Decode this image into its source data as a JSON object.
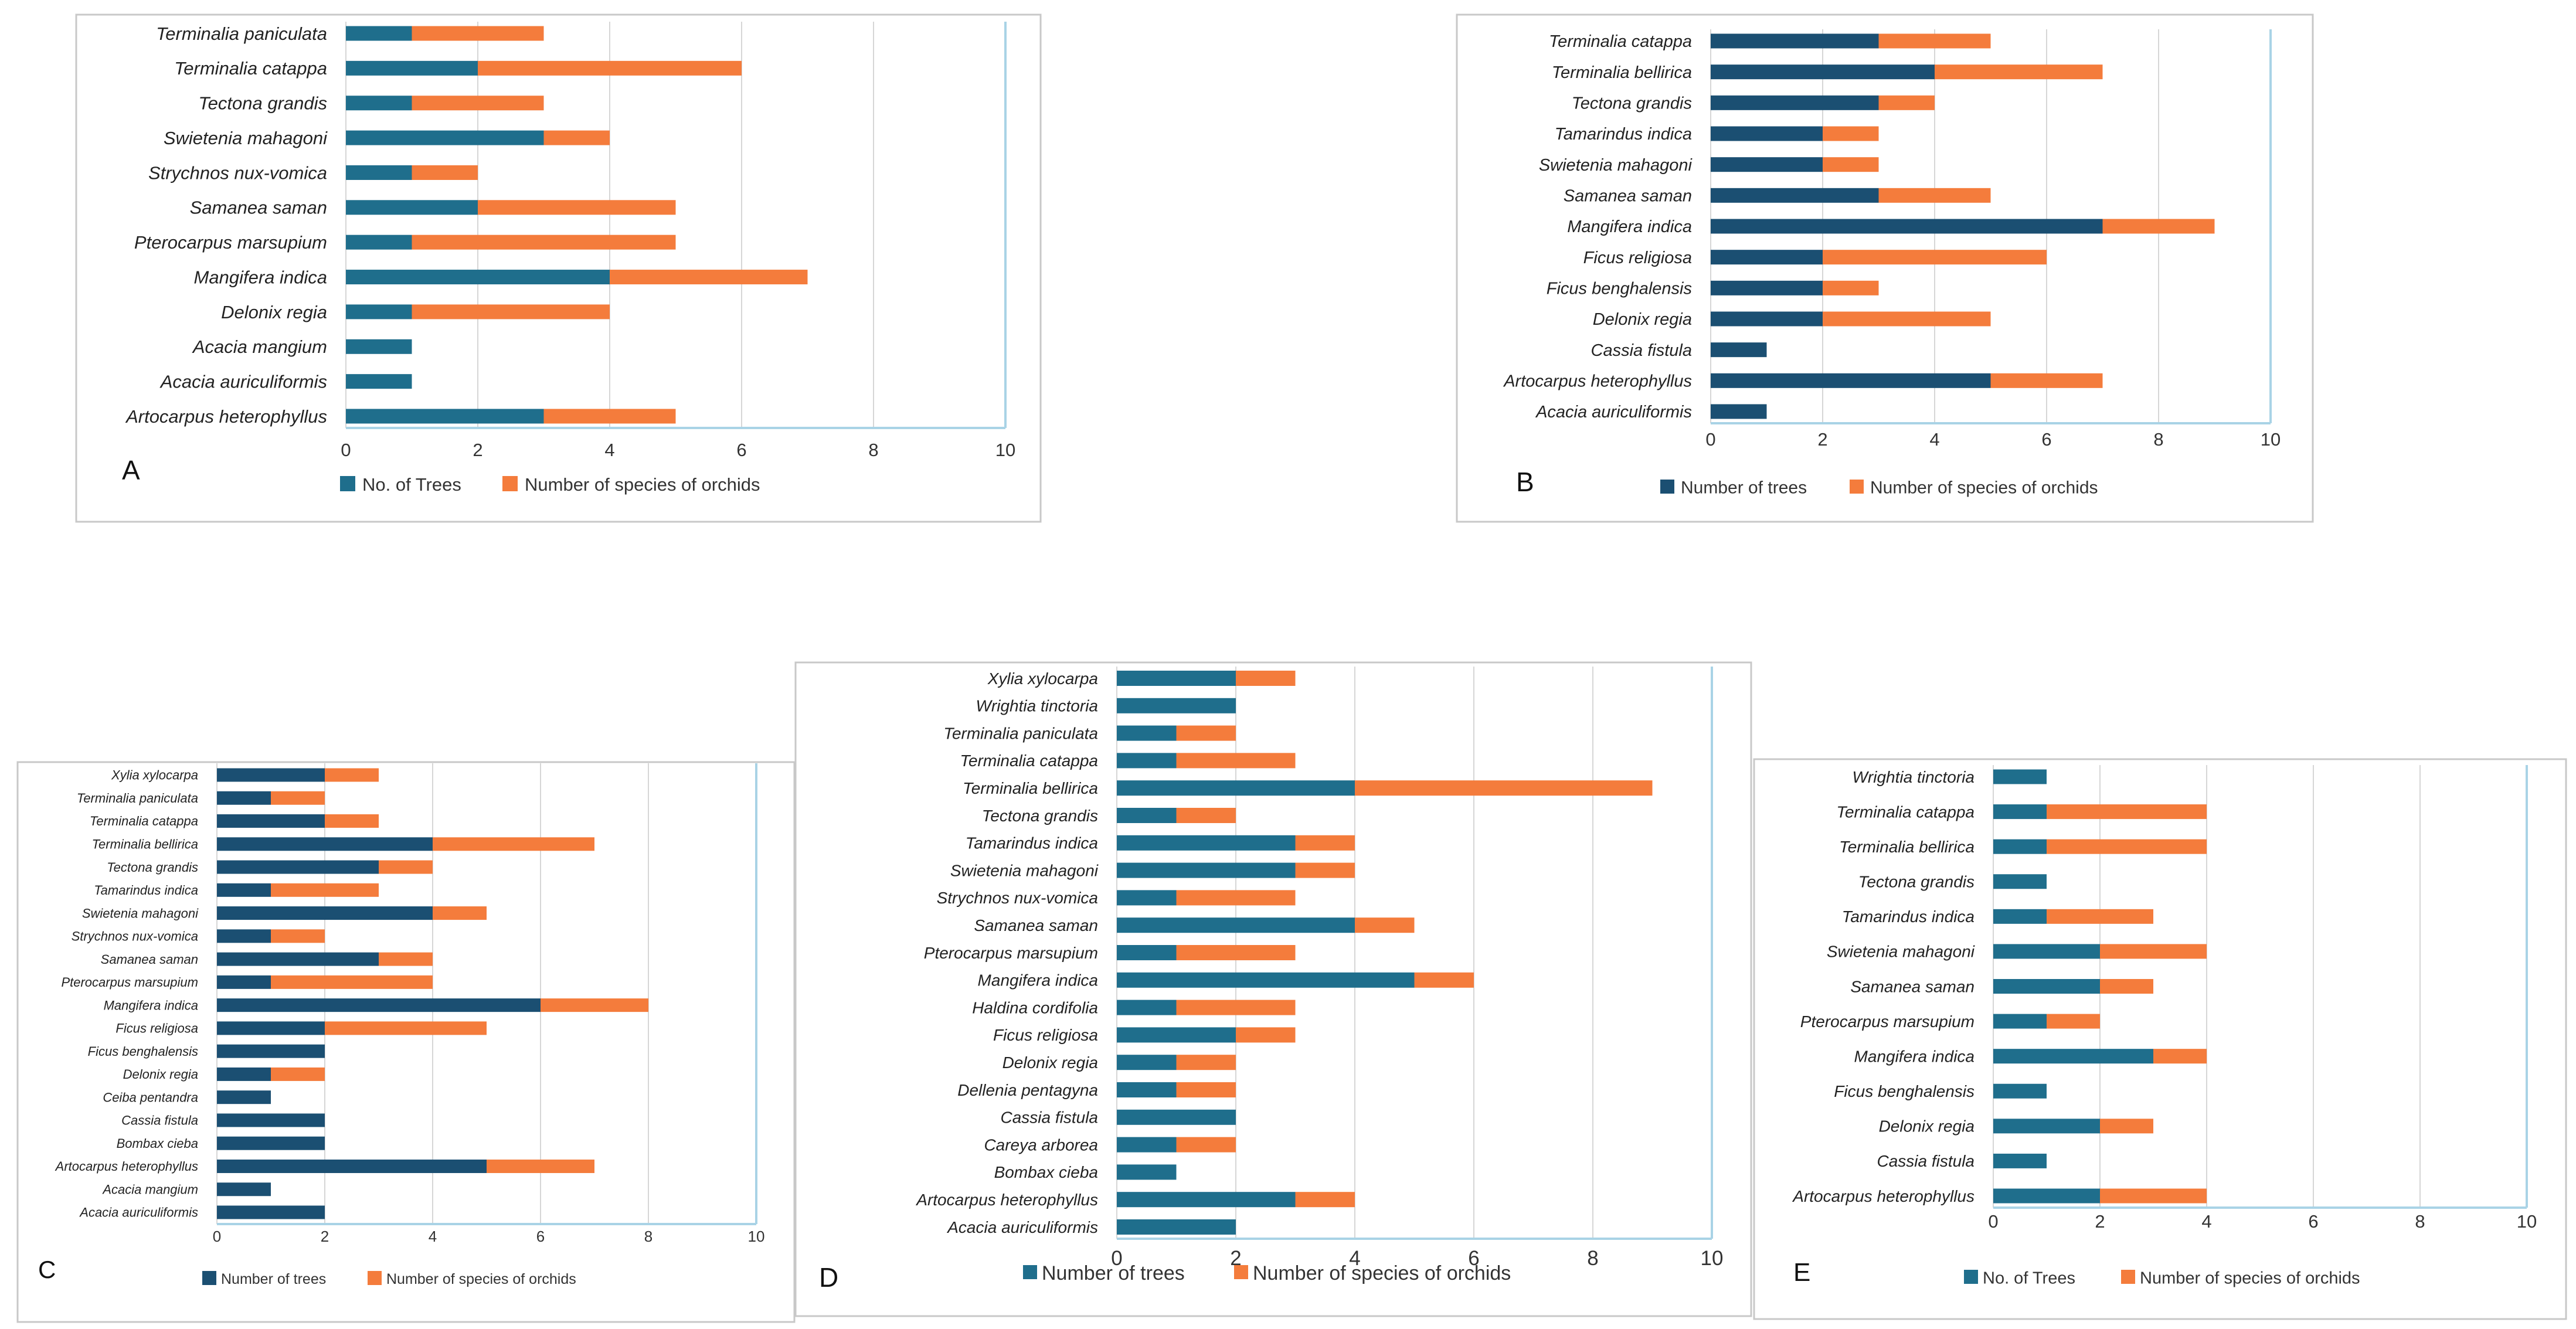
{
  "figure": {
    "panels": [
      "A",
      "B",
      "C",
      "D",
      "E"
    ]
  },
  "chart_data": [
    {
      "type": "bar",
      "stacked": true,
      "orientation": "horizontal",
      "panel_label": "A",
      "categories": [
        "Terminalia paniculata",
        "Terminalia catappa",
        "Tectona grandis",
        "Swietenia mahagoni",
        "Strychnos nux-vomica",
        "Samanea saman",
        "Pterocarpus marsupium",
        "Mangifera indica",
        "Delonix regia",
        "Acacia mangium",
        "Acacia auriculiformis",
        "Artocarpus heterophyllus"
      ],
      "series": [
        {
          "name": "No. of Trees",
          "color": "#1f6e8c",
          "values": [
            1,
            2,
            1,
            3,
            1,
            2,
            1,
            4,
            1,
            1,
            1,
            3
          ]
        },
        {
          "name": "Number of species of orchids",
          "color": "#f47c3c",
          "values": [
            2,
            4,
            2,
            1,
            1,
            3,
            4,
            3,
            3,
            0,
            0,
            2
          ]
        }
      ],
      "xlim": [
        0,
        10
      ],
      "xticks": [
        "0",
        "2",
        "4",
        "6",
        "8",
        "10"
      ],
      "grid": true,
      "legend": "bottom"
    },
    {
      "type": "bar",
      "stacked": true,
      "orientation": "horizontal",
      "panel_label": "B",
      "categories": [
        "Terminalia catappa",
        "Terminalia bellirica",
        "Tectona grandis",
        "Tamarindus indica",
        "Swietenia mahagoni",
        "Samanea saman",
        "Mangifera indica",
        "Ficus religiosa",
        "Ficus benghalensis",
        "Delonix regia",
        "Cassia fistula",
        "Artocarpus heterophyllus",
        "Acacia auriculiformis"
      ],
      "series": [
        {
          "name": "Number of trees",
          "color": "#1b4f72",
          "values": [
            3,
            4,
            3,
            2,
            2,
            3,
            7,
            2,
            2,
            2,
            1,
            5,
            1
          ]
        },
        {
          "name": "Number of species of orchids",
          "color": "#f47c3c",
          "values": [
            2,
            3,
            1,
            1,
            1,
            2,
            2,
            4,
            1,
            3,
            0,
            2,
            0
          ]
        }
      ],
      "xlim": [
        0,
        10
      ],
      "xticks": [
        "0",
        "2",
        "4",
        "6",
        "8",
        "10"
      ],
      "grid": true,
      "legend": "bottom"
    },
    {
      "type": "bar",
      "stacked": true,
      "orientation": "horizontal",
      "panel_label": "C",
      "categories": [
        "Xylia xylocarpa",
        "Terminalia paniculata",
        "Terminalia catappa",
        "Terminalia bellirica",
        "Tectona grandis",
        "Tamarindus indica",
        "Swietenia mahagoni",
        "Strychnos nux-vomica",
        "Samanea saman",
        "Pterocarpus marsupium",
        "Mangifera indica",
        "Ficus religiosa",
        "Ficus benghalensis",
        "Delonix regia",
        "Ceiba pentandra",
        "Cassia fistula",
        "Bombax cieba",
        "Artocarpus heterophyllus",
        "Acacia mangium",
        "Acacia auriculiformis"
      ],
      "series": [
        {
          "name": "Number of trees",
          "color": "#1b4f72",
          "values": [
            2,
            1,
            2,
            4,
            3,
            1,
            4,
            1,
            3,
            1,
            6,
            2,
            2,
            1,
            1,
            2,
            2,
            5,
            1,
            2
          ]
        },
        {
          "name": "Number of species of orchids",
          "color": "#f47c3c",
          "values": [
            1,
            1,
            1,
            3,
            1,
            2,
            1,
            1,
            1,
            3,
            2,
            3,
            0,
            1,
            0,
            0,
            0,
            2,
            0,
            0
          ]
        }
      ],
      "xlim": [
        0,
        10
      ],
      "xticks": [
        "0",
        "2",
        "4",
        "6",
        "8",
        "10"
      ],
      "grid": true,
      "legend": "bottom"
    },
    {
      "type": "bar",
      "stacked": true,
      "orientation": "horizontal",
      "panel_label": "D",
      "categories": [
        "Xylia xylocarpa",
        "Wrightia tinctoria",
        "Terminalia paniculata",
        "Terminalia catappa",
        "Terminalia bellirica",
        "Tectona grandis",
        "Tamarindus indica",
        "Swietenia mahagoni",
        "Strychnos nux-vomica",
        "Samanea saman",
        "Pterocarpus marsupium",
        "Mangifera indica",
        "Haldina cordifolia",
        "Ficus religiosa",
        "Delonix regia",
        "Dellenia pentagyna",
        "Cassia fistula",
        "Careya arborea",
        "Bombax cieba",
        "Artocarpus heterophyllus",
        "Acacia auriculiformis"
      ],
      "series": [
        {
          "name": "Number of trees",
          "color": "#1f6e8c",
          "values": [
            2,
            2,
            1,
            1,
            4,
            1,
            3,
            3,
            1,
            4,
            1,
            5,
            1,
            2,
            1,
            1,
            2,
            1,
            1,
            3,
            2
          ]
        },
        {
          "name": "Number of species of orchids",
          "color": "#f47c3c",
          "values": [
            1,
            0,
            1,
            2,
            5,
            1,
            1,
            1,
            2,
            1,
            2,
            1,
            2,
            1,
            1,
            1,
            0,
            1,
            0,
            1,
            0
          ]
        }
      ],
      "xlim": [
        0,
        10
      ],
      "xticks": [
        "0",
        "2",
        "4",
        "6",
        "8",
        "10"
      ],
      "grid": true,
      "legend": "bottom"
    },
    {
      "type": "bar",
      "stacked": true,
      "orientation": "horizontal",
      "panel_label": "E",
      "categories": [
        "Wrightia tinctoria",
        "Terminalia catappa",
        "Terminalia bellirica",
        "Tectona grandis",
        "Tamarindus indica",
        "Swietenia mahagoni",
        "Samanea saman",
        "Pterocarpus marsupium",
        "Mangifera indica",
        "Ficus benghalensis",
        "Delonix regia",
        "Cassia fistula",
        "Artocarpus heterophyllus"
      ],
      "series": [
        {
          "name": "No. of Trees",
          "color": "#1f6e8c",
          "values": [
            1,
            1,
            1,
            1,
            1,
            2,
            2,
            1,
            3,
            1,
            2,
            1,
            2
          ]
        },
        {
          "name": "Number of species of orchids",
          "color": "#f47c3c",
          "values": [
            0,
            3,
            3,
            0,
            2,
            2,
            1,
            1,
            1,
            0,
            1,
            0,
            2
          ]
        }
      ],
      "xlim": [
        0,
        10
      ],
      "xticks": [
        "0",
        "2",
        "4",
        "6",
        "8",
        "10"
      ],
      "grid": true,
      "legend": "bottom"
    }
  ]
}
